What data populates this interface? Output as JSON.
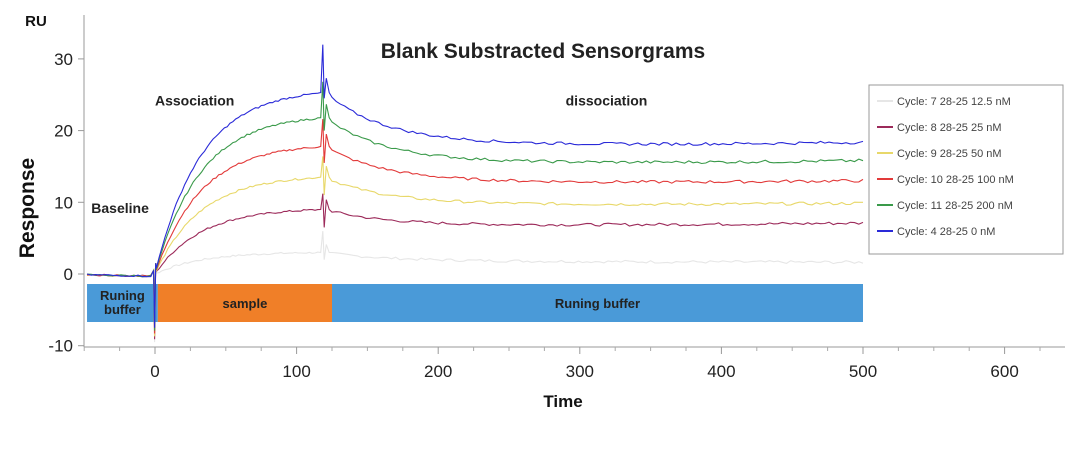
{
  "chart_data": {
    "type": "line",
    "title": "Blank Substracted Sensorgrams",
    "xlabel": "Time",
    "ylabel": "Response",
    "yunit": "RU",
    "xlim": [
      -50,
      650
    ],
    "ylim": [
      -10,
      36
    ],
    "xticks": [
      0,
      100,
      200,
      300,
      400,
      500,
      600
    ],
    "yticks": [
      -10,
      0,
      10,
      20,
      30
    ],
    "grid": false,
    "legend_position": "right",
    "injection_start": 0,
    "injection_end": 120,
    "end_time": 500,
    "phase_labels": [
      {
        "text": "Baseline",
        "x": -45,
        "y": 8.5
      },
      {
        "text": "Association",
        "x": 0,
        "y": 23.5
      },
      {
        "text": "dissociation",
        "x": 290,
        "y": 23.5
      }
    ],
    "phase_bars": [
      {
        "label": "Runing buffer",
        "start": -48,
        "end": 2,
        "color": "#4a9ad8"
      },
      {
        "label": "sample",
        "start": 2,
        "end": 125,
        "color": "#f07f28"
      },
      {
        "label": "Runing buffer",
        "start": 125,
        "end": 500,
        "color": "#4a9ad8"
      }
    ],
    "series": [
      {
        "name": "Cycle: 7  28-25  12.5 nM",
        "color": "#e6e6e6",
        "peak_value": 3.0,
        "end_value": 1.5
      },
      {
        "name": "Cycle: 8  28-25  25 nM",
        "color": "#9c2a5a",
        "peak_value": 9.0,
        "end_value": 7.2
      },
      {
        "name": "Cycle: 9  28-25  50 nM",
        "color": "#e8d86a",
        "peak_value": 13.5,
        "end_value": 10.0
      },
      {
        "name": "Cycle: 10  28-25  100 nM",
        "color": "#e23a3a",
        "peak_value": 17.8,
        "end_value": 13.2
      },
      {
        "name": "Cycle: 11  28-25  200 nM",
        "color": "#3a9a4a",
        "peak_value": 21.8,
        "end_value": 15.8
      },
      {
        "name": "Cycle: 4  28-25  0 nM",
        "color": "#2a2ad8",
        "peak_value": 25.3,
        "end_value": 18.5
      }
    ]
  }
}
